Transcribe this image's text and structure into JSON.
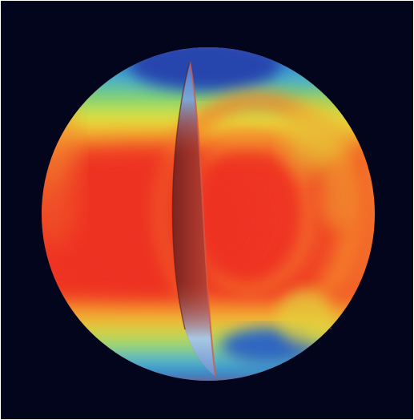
{
  "image": {
    "subject": "sun-interior-rotation-visualization",
    "background_color": "#02051c",
    "colors": {
      "red": "#ef3323",
      "orange": "#f5752a",
      "yellow": "#e9e637",
      "green": "#7bd36e",
      "cyan": "#3fb1d6",
      "blue": "#2f56bb",
      "cutaway": "#9a2f26"
    }
  }
}
